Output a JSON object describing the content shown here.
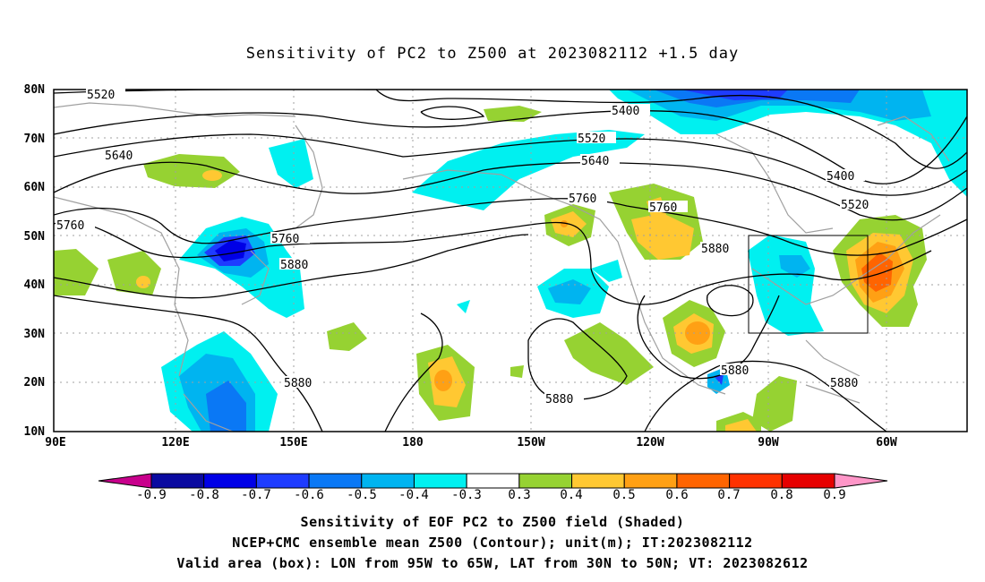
{
  "title": "Sensitivity of PC2 to Z500 at 2023082112 +1.5 day",
  "map": {
    "lat_labels": [
      "80N",
      "70N",
      "60N",
      "50N",
      "40N",
      "30N",
      "20N",
      "10N"
    ],
    "lon_labels": [
      "90E",
      "120E",
      "150E",
      "180",
      "150W",
      "120W",
      "90W",
      "60W"
    ],
    "contour_labels": [
      {
        "text": "5520"
      },
      {
        "text": "5400"
      },
      {
        "text": "5520"
      },
      {
        "text": "5640"
      },
      {
        "text": "5640"
      },
      {
        "text": "5400"
      },
      {
        "text": "5520"
      },
      {
        "text": "5760"
      },
      {
        "text": "5760"
      },
      {
        "text": "5760"
      },
      {
        "text": "5760"
      },
      {
        "text": "5880"
      },
      {
        "text": "5880"
      },
      {
        "text": "5880"
      },
      {
        "text": "5880"
      },
      {
        "text": "5880"
      },
      {
        "text": "5880"
      }
    ],
    "valid_box": {
      "lon_from": "95W",
      "lon_to": "65W",
      "lat_from": "30N",
      "lat_to": "50N"
    }
  },
  "colorbar": {
    "labels": [
      "-0.9",
      "-0.8",
      "-0.7",
      "-0.6",
      "-0.5",
      "-0.4",
      "-0.3",
      "0.3",
      "0.4",
      "0.5",
      "0.6",
      "0.7",
      "0.8",
      "0.9"
    ],
    "colors": [
      "#0a0aa0",
      "#0000e6",
      "#1e3cff",
      "#0a78f5",
      "#00b4f0",
      "#00f0f0",
      "#ffffff",
      "#96d232",
      "#ffc832",
      "#ffa014",
      "#ff6400",
      "#ff3200",
      "#e60000"
    ],
    "left_arrow_color": "#c8008c",
    "right_arrow_color": "#ff96c8"
  },
  "captions": [
    "Sensitivity of EOF PC2 to Z500 field (Shaded)",
    "NCEP+CMC ensemble mean Z500 (Contour); unit(m); IT:2023082112",
    "Valid area (box): LON from 95W to 65W, LAT from 30N to 50N; VT: 2023082612"
  ]
}
